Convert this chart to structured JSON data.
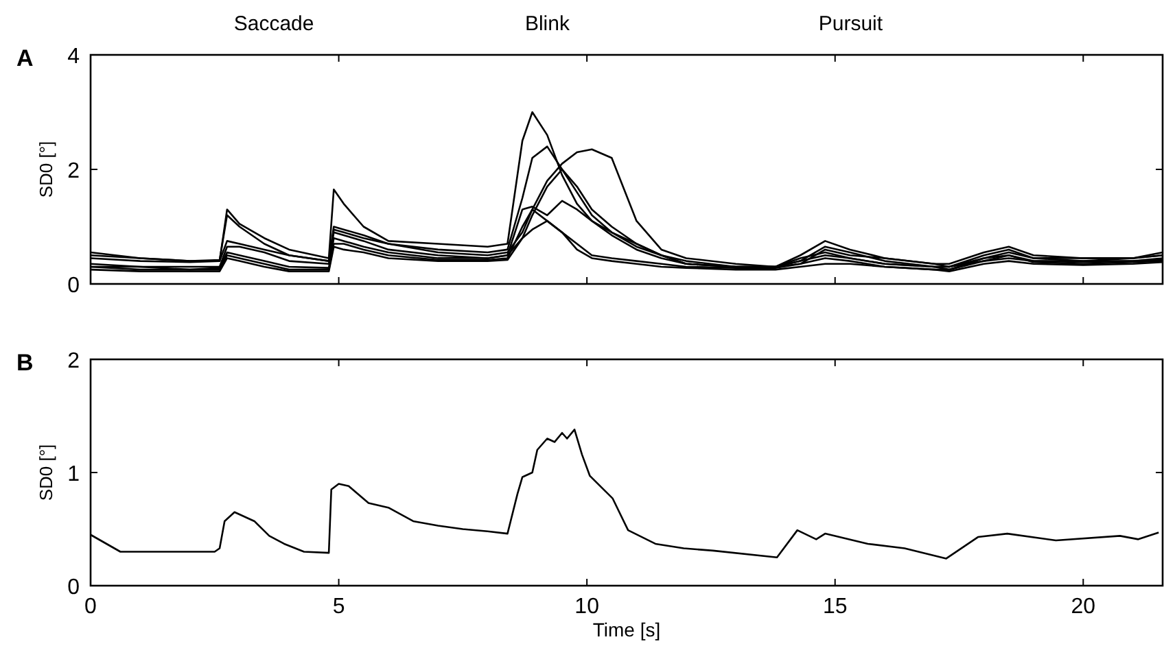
{
  "chart_data": [
    {
      "type": "line",
      "title": "A",
      "ylabel": "SD0 [°]",
      "xlim": [
        0,
        21.6
      ],
      "xticks": [
        0,
        5,
        10,
        15,
        20
      ],
      "ylim": [
        0,
        4
      ],
      "yticks": [
        0,
        2,
        4
      ],
      "tick_labels": "y",
      "line_style": "solid",
      "annotations": [
        "Saccade",
        "Blink",
        "Pursuit"
      ],
      "x": [
        0,
        1,
        2,
        2.6,
        2.75,
        3.0,
        3.5,
        4.0,
        4.8,
        4.9,
        5.1,
        5.5,
        6,
        7,
        8,
        8.4,
        8.7,
        8.9,
        9.2,
        9.5,
        9.8,
        10.1,
        10.5,
        11,
        11.5,
        12,
        13,
        13.8,
        14.3,
        14.8,
        15.3,
        16,
        17,
        17.3,
        18,
        18.5,
        19,
        20,
        21,
        21.6
      ],
      "series": [
        {
          "color": "#000000",
          "values": [
            0.45,
            0.4,
            0.38,
            0.4,
            1.3,
            1.05,
            0.8,
            0.6,
            0.45,
            1.65,
            1.4,
            1.0,
            0.75,
            0.7,
            0.65,
            0.7,
            2.5,
            3.0,
            2.6,
            1.9,
            1.4,
            1.1,
            0.9,
            0.7,
            0.5,
            0.35,
            0.3,
            0.3,
            0.35,
            0.6,
            0.5,
            0.45,
            0.35,
            0.3,
            0.45,
            0.55,
            0.45,
            0.45,
            0.45,
            0.5
          ]
        },
        {
          "color": "#000000",
          "values": [
            0.5,
            0.45,
            0.4,
            0.42,
            1.2,
            1.0,
            0.7,
            0.5,
            0.4,
            1.0,
            0.95,
            0.85,
            0.7,
            0.6,
            0.55,
            0.6,
            1.5,
            2.2,
            2.4,
            2.0,
            1.6,
            1.2,
            0.9,
            0.65,
            0.5,
            0.35,
            0.3,
            0.3,
            0.5,
            0.75,
            0.6,
            0.45,
            0.35,
            0.35,
            0.55,
            0.65,
            0.5,
            0.45,
            0.45,
            0.55
          ]
        },
        {
          "color": "#000000",
          "values": [
            0.55,
            0.45,
            0.4,
            0.4,
            0.75,
            0.7,
            0.6,
            0.5,
            0.4,
            0.95,
            0.9,
            0.8,
            0.7,
            0.55,
            0.5,
            0.55,
            0.9,
            1.3,
            1.8,
            2.1,
            2.3,
            2.35,
            2.2,
            1.1,
            0.6,
            0.45,
            0.35,
            0.3,
            0.4,
            0.65,
            0.55,
            0.4,
            0.3,
            0.3,
            0.5,
            0.6,
            0.45,
            0.4,
            0.45,
            0.5
          ]
        },
        {
          "color": "#000000",
          "values": [
            0.35,
            0.3,
            0.3,
            0.3,
            0.65,
            0.65,
            0.55,
            0.4,
            0.35,
            0.9,
            0.85,
            0.75,
            0.6,
            0.5,
            0.45,
            0.5,
            0.8,
            1.2,
            1.7,
            2.0,
            1.7,
            1.3,
            1.0,
            0.7,
            0.5,
            0.4,
            0.3,
            0.3,
            0.45,
            0.55,
            0.45,
            0.35,
            0.3,
            0.25,
            0.45,
            0.5,
            0.4,
            0.4,
            0.4,
            0.45
          ]
        },
        {
          "color": "#000000",
          "values": [
            0.3,
            0.3,
            0.25,
            0.28,
            0.55,
            0.5,
            0.4,
            0.3,
            0.28,
            0.8,
            0.75,
            0.65,
            0.55,
            0.45,
            0.45,
            0.5,
            1.3,
            1.35,
            1.2,
            1.45,
            1.3,
            1.1,
            0.85,
            0.6,
            0.45,
            0.35,
            0.3,
            0.3,
            0.4,
            0.5,
            0.45,
            0.35,
            0.3,
            0.3,
            0.4,
            0.45,
            0.4,
            0.38,
            0.4,
            0.42
          ]
        },
        {
          "color": "#000000",
          "values": [
            0.3,
            0.25,
            0.25,
            0.25,
            0.5,
            0.45,
            0.35,
            0.25,
            0.25,
            0.7,
            0.7,
            0.6,
            0.5,
            0.42,
            0.42,
            0.45,
            1.0,
            1.3,
            1.1,
            0.9,
            0.7,
            0.5,
            0.45,
            0.4,
            0.35,
            0.3,
            0.28,
            0.28,
            0.35,
            0.45,
            0.4,
            0.3,
            0.25,
            0.25,
            0.4,
            0.5,
            0.38,
            0.35,
            0.38,
            0.4
          ]
        },
        {
          "color": "#000000",
          "values": [
            0.25,
            0.22,
            0.22,
            0.22,
            0.45,
            0.4,
            0.3,
            0.22,
            0.22,
            0.65,
            0.6,
            0.55,
            0.45,
            0.4,
            0.4,
            0.42,
            0.8,
            0.95,
            1.1,
            0.9,
            0.6,
            0.45,
            0.4,
            0.35,
            0.3,
            0.28,
            0.25,
            0.25,
            0.3,
            0.35,
            0.35,
            0.3,
            0.25,
            0.22,
            0.35,
            0.4,
            0.35,
            0.33,
            0.35,
            0.38
          ]
        }
      ]
    },
    {
      "type": "line",
      "title": "B",
      "xlabel": "Time [s]",
      "ylabel": "SD0 [°]",
      "xlim": [
        0,
        21.6
      ],
      "xticks": [
        0,
        5,
        10,
        15,
        20
      ],
      "ylim": [
        0,
        2
      ],
      "yticks": [
        0,
        1,
        2
      ],
      "line_style": "solid",
      "x": [
        0,
        0.6,
        2.5,
        2.6,
        2.7,
        2.9,
        3.3,
        3.6,
        3.9,
        4.3,
        4.8,
        4.85,
        5.0,
        5.2,
        5.6,
        6.0,
        6.5,
        7.0,
        7.5,
        8.0,
        8.4,
        8.6,
        8.7,
        8.9,
        9.0,
        9.2,
        9.35,
        9.5,
        9.6,
        9.75,
        9.9,
        10.06,
        10.52,
        10.83,
        11.38,
        11.95,
        12.54,
        13.83,
        14.24,
        14.62,
        14.8,
        15.66,
        16.4,
        17.24,
        17.88,
        18.47,
        19.45,
        20.74,
        21.11,
        21.52
      ],
      "series": [
        {
          "color": "#000000",
          "values": [
            0.45,
            0.3,
            0.3,
            0.33,
            0.57,
            0.65,
            0.57,
            0.44,
            0.37,
            0.3,
            0.29,
            0.85,
            0.9,
            0.88,
            0.73,
            0.69,
            0.57,
            0.53,
            0.5,
            0.48,
            0.46,
            0.81,
            0.96,
            1.0,
            1.2,
            1.3,
            1.27,
            1.35,
            1.3,
            1.38,
            1.16,
            0.97,
            0.77,
            0.49,
            0.37,
            0.33,
            0.31,
            0.25,
            0.49,
            0.41,
            0.46,
            0.37,
            0.33,
            0.24,
            0.43,
            0.46,
            0.4,
            0.44,
            0.41,
            0.47
          ]
        }
      ]
    }
  ]
}
